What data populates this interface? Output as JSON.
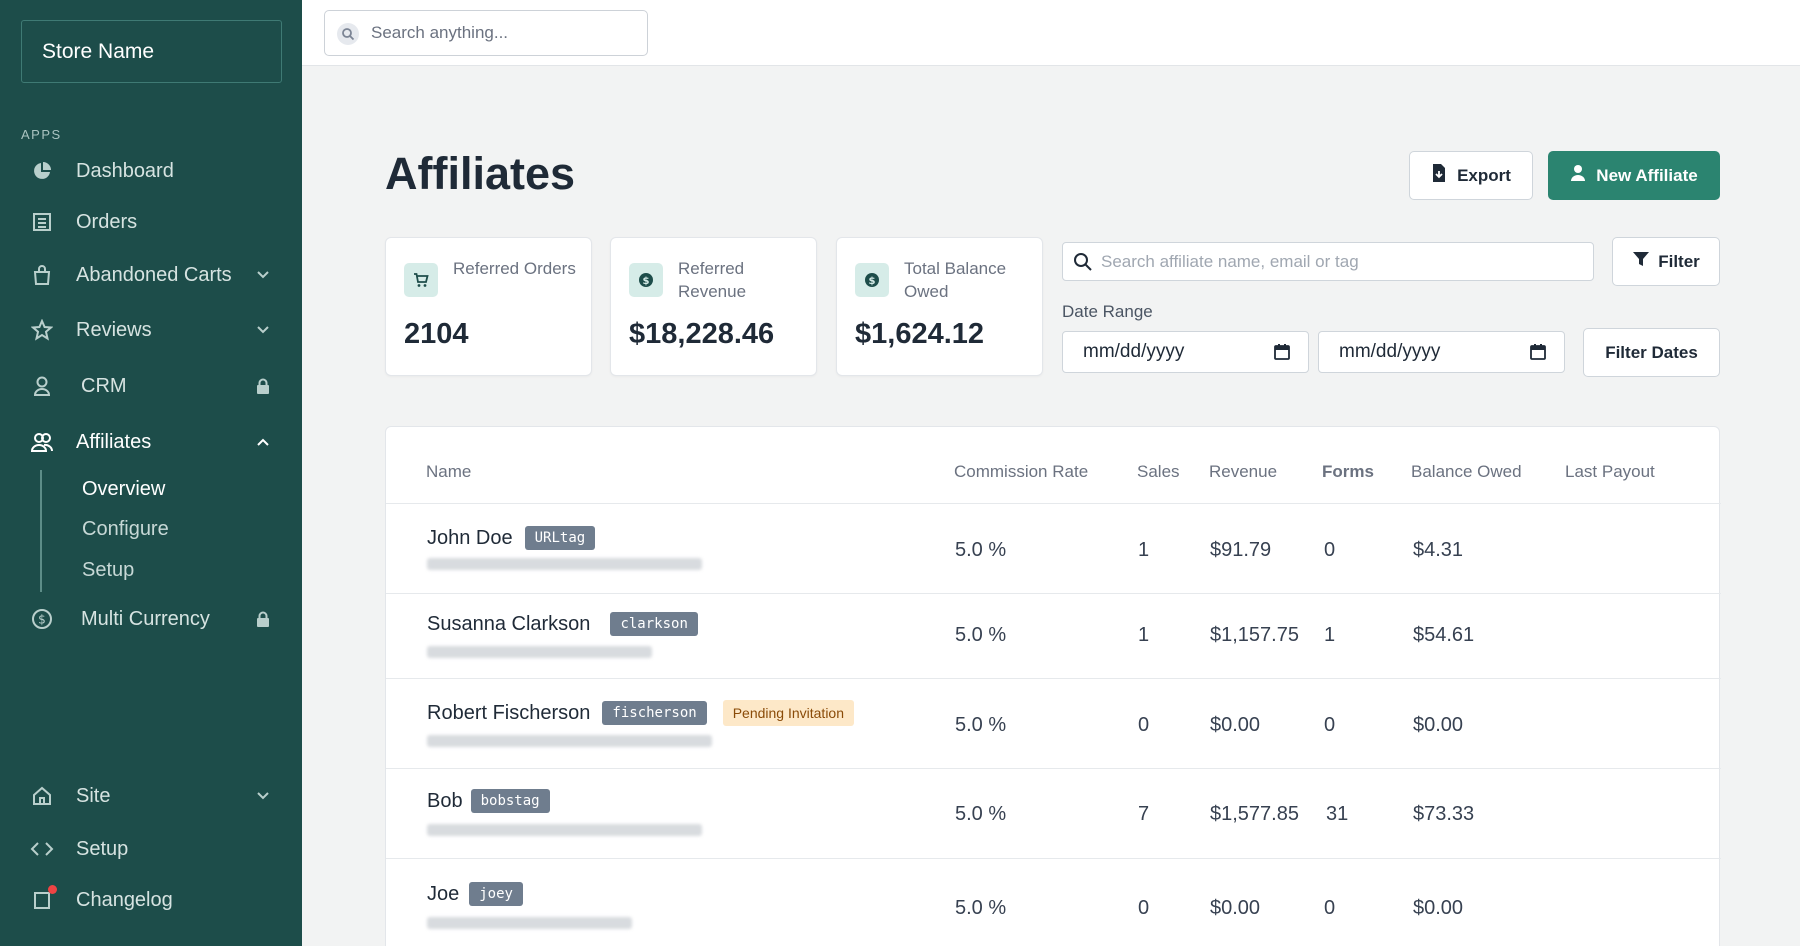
{
  "sidebar": {
    "store_name": "Store Name",
    "section_label": "APPS",
    "items": [
      {
        "label": "Dashboard",
        "icon": "pie-chart-icon"
      },
      {
        "label": "Orders",
        "icon": "orders-icon"
      },
      {
        "label": "Abandoned Carts",
        "icon": "bag-icon",
        "trailing": "chevron-down-icon"
      },
      {
        "label": "Reviews",
        "icon": "star-icon",
        "trailing": "chevron-down-icon"
      },
      {
        "label": "CRM",
        "icon": "user-icon",
        "trailing": "lock-icon"
      },
      {
        "label": "Affiliates",
        "icon": "users-icon",
        "trailing": "chevron-up-icon",
        "active": true
      },
      {
        "label": "Multi Currency",
        "icon": "dollar-circle-icon",
        "trailing": "lock-icon"
      },
      {
        "label": "Site",
        "icon": "home-icon",
        "trailing": "chevron-down-icon"
      },
      {
        "label": "Setup",
        "icon": "code-icon"
      },
      {
        "label": "Changelog",
        "icon": "changelog-icon"
      }
    ],
    "affiliates_subitems": [
      {
        "label": "Overview",
        "active": true
      },
      {
        "label": "Configure"
      },
      {
        "label": "Setup"
      }
    ]
  },
  "topbar": {
    "search_placeholder": "Search anything..."
  },
  "header": {
    "title": "Affiliates",
    "export_label": "Export",
    "new_affiliate_label": "New Affiliate"
  },
  "stats": [
    {
      "label": "Referred Orders",
      "value": "2104",
      "icon": "cart-icon"
    },
    {
      "label": "Referred Revenue",
      "value": "$18,228.46",
      "icon": "dollar-icon"
    },
    {
      "label": "Total Balance Owed",
      "value": "$1,624.12",
      "icon": "dollar-icon"
    }
  ],
  "filters": {
    "search_placeholder": "Search affiliate name, email or tag",
    "filter_label": "Filter",
    "date_range_label": "Date Range",
    "start_date_placeholder": "mm/dd/yyyy",
    "end_date_placeholder": "mm/dd/yyyy",
    "filter_dates_label": "Filter Dates"
  },
  "table": {
    "columns": [
      "Name",
      "Commission Rate",
      "Sales",
      "Revenue",
      "Forms",
      "Balance Owed",
      "Last Payout"
    ],
    "rows": [
      {
        "name": "John Doe",
        "tag": "URLtag",
        "status": "",
        "commission": "5.0 %",
        "sales": "1",
        "revenue": "$91.79",
        "forms": "0",
        "balance": "$4.31",
        "last_payout": ""
      },
      {
        "name": "Susanna Clarkson",
        "tag": "clarkson",
        "status": "",
        "commission": "5.0 %",
        "sales": "1",
        "revenue": "$1,157.75",
        "forms": "1",
        "balance": "$54.61",
        "last_payout": ""
      },
      {
        "name": "Robert Fischerson",
        "tag": "fischerson",
        "status": "Pending Invitation",
        "commission": "5.0 %",
        "sales": "0",
        "revenue": "$0.00",
        "forms": "0",
        "balance": "$0.00",
        "last_payout": ""
      },
      {
        "name": "Bob",
        "tag": "bobstag",
        "status": "",
        "commission": "5.0 %",
        "sales": "7",
        "revenue": "$1,577.85",
        "forms": "31",
        "balance": "$73.33",
        "last_payout": ""
      },
      {
        "name": "Joe",
        "tag": "joey",
        "status": "",
        "commission": "5.0 %",
        "sales": "0",
        "revenue": "$0.00",
        "forms": "0",
        "balance": "$0.00",
        "last_payout": ""
      }
    ]
  },
  "colors": {
    "sidebar_bg": "#1d4d4a",
    "accent": "#2b8470",
    "tag_bg": "#6f7d8e",
    "pending_bg": "#fde8c8"
  }
}
